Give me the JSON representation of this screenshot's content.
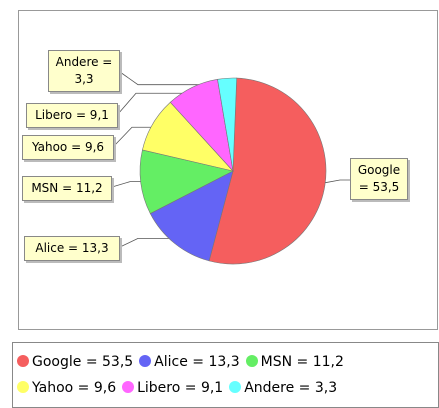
{
  "chart_data": {
    "type": "pie",
    "categories": [
      "Google = 53,5",
      "Alice = 13,3",
      "MSN = 11,2",
      "Yahoo = 9,6",
      "Libero = 9,1",
      "Andere = 3,3"
    ],
    "values": [
      53.5,
      13.3,
      11.2,
      9.6,
      9.1,
      3.3
    ],
    "colors": [
      "#f55e5e",
      "#6464f5",
      "#64ee64",
      "#ffff66",
      "#ff66ff",
      "#66ffff"
    ]
  }
}
